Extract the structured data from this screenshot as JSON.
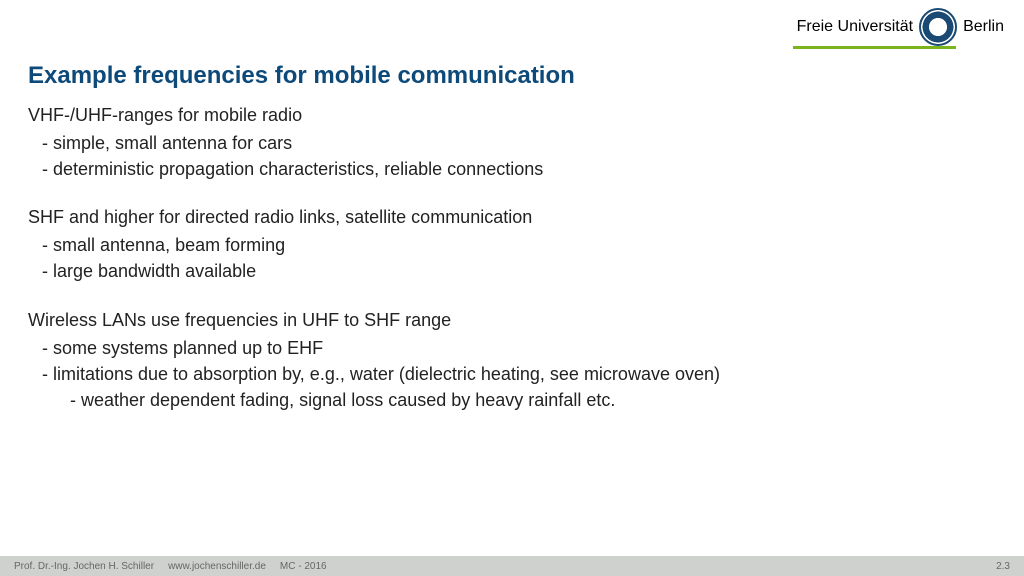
{
  "logo": {
    "text_left": "Freie Universität",
    "text_right": "Berlin",
    "underline_color": "#7ab51d",
    "seal_primary": "#1a4a73"
  },
  "title": {
    "text": "Example frequencies for mobile communication",
    "color": "#0d4a7a",
    "fontsize": 24,
    "fontweight": "bold"
  },
  "body": {
    "fontsize": 18,
    "color": "#222222",
    "line_height": 1.45,
    "sections": [
      {
        "head": "VHF-/UHF-ranges for mobile radio",
        "bullets": [
          {
            "text": "- simple, small antenna for cars"
          },
          {
            "text": "- deterministic propagation characteristics, reliable connections"
          }
        ]
      },
      {
        "head": "SHF and higher for directed radio links, satellite communication",
        "bullets": [
          {
            "text": "- small antenna, beam forming"
          },
          {
            "text": "- large bandwidth available"
          }
        ]
      },
      {
        "head": "Wireless LANs use frequencies in UHF to SHF range",
        "bullets": [
          {
            "text": "- some systems planned up to EHF"
          },
          {
            "text": "- limitations due to absorption by, e.g., water (dielectric heating, see microwave oven)"
          },
          {
            "text": "- weather dependent fading, signal loss caused by heavy rainfall etc.",
            "sub": true
          }
        ]
      }
    ]
  },
  "footer": {
    "author": "Prof. Dr.-Ing. Jochen H. Schiller",
    "url": "www.jochenschiller.de",
    "course": "MC - 2016",
    "page": "2.3",
    "bg": "#cfd1cf",
    "color": "#666666",
    "fontsize": 10
  }
}
